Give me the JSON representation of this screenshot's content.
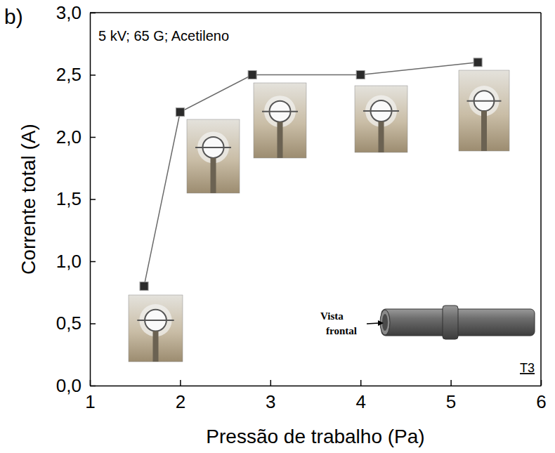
{
  "chart_data": {
    "type": "line",
    "x_label": "Pressão de trabalho (Pa)",
    "y_label": "Corrente total (A)",
    "annotations": [
      "b)",
      "5 kV; 65 G; Acetileno",
      "Vista frontal",
      "T3"
    ],
    "x": [
      1.6,
      2.0,
      2.8,
      4.0,
      5.3
    ],
    "values": [
      0.8,
      2.2,
      2.5,
      2.5,
      2.6
    ],
    "color": "#2b2b2b",
    "marker": "square",
    "line_style": "solid",
    "grid": false,
    "xlim": [
      1,
      6
    ],
    "xticks": [
      1,
      2,
      3,
      4,
      5,
      6
    ],
    "ylim": [
      0,
      3
    ],
    "yticks": [
      {
        "value": 0,
        "label": "0,0"
      },
      {
        "value": 0.5,
        "label": "0,5"
      },
      {
        "value": 1,
        "label": "1,0"
      },
      {
        "value": 1.5,
        "label": "1,5"
      },
      {
        "value": 2,
        "label": "2,0"
      },
      {
        "value": 2.5,
        "label": "2,5"
      },
      {
        "value": 3,
        "label": "3,0"
      }
    ]
  }
}
